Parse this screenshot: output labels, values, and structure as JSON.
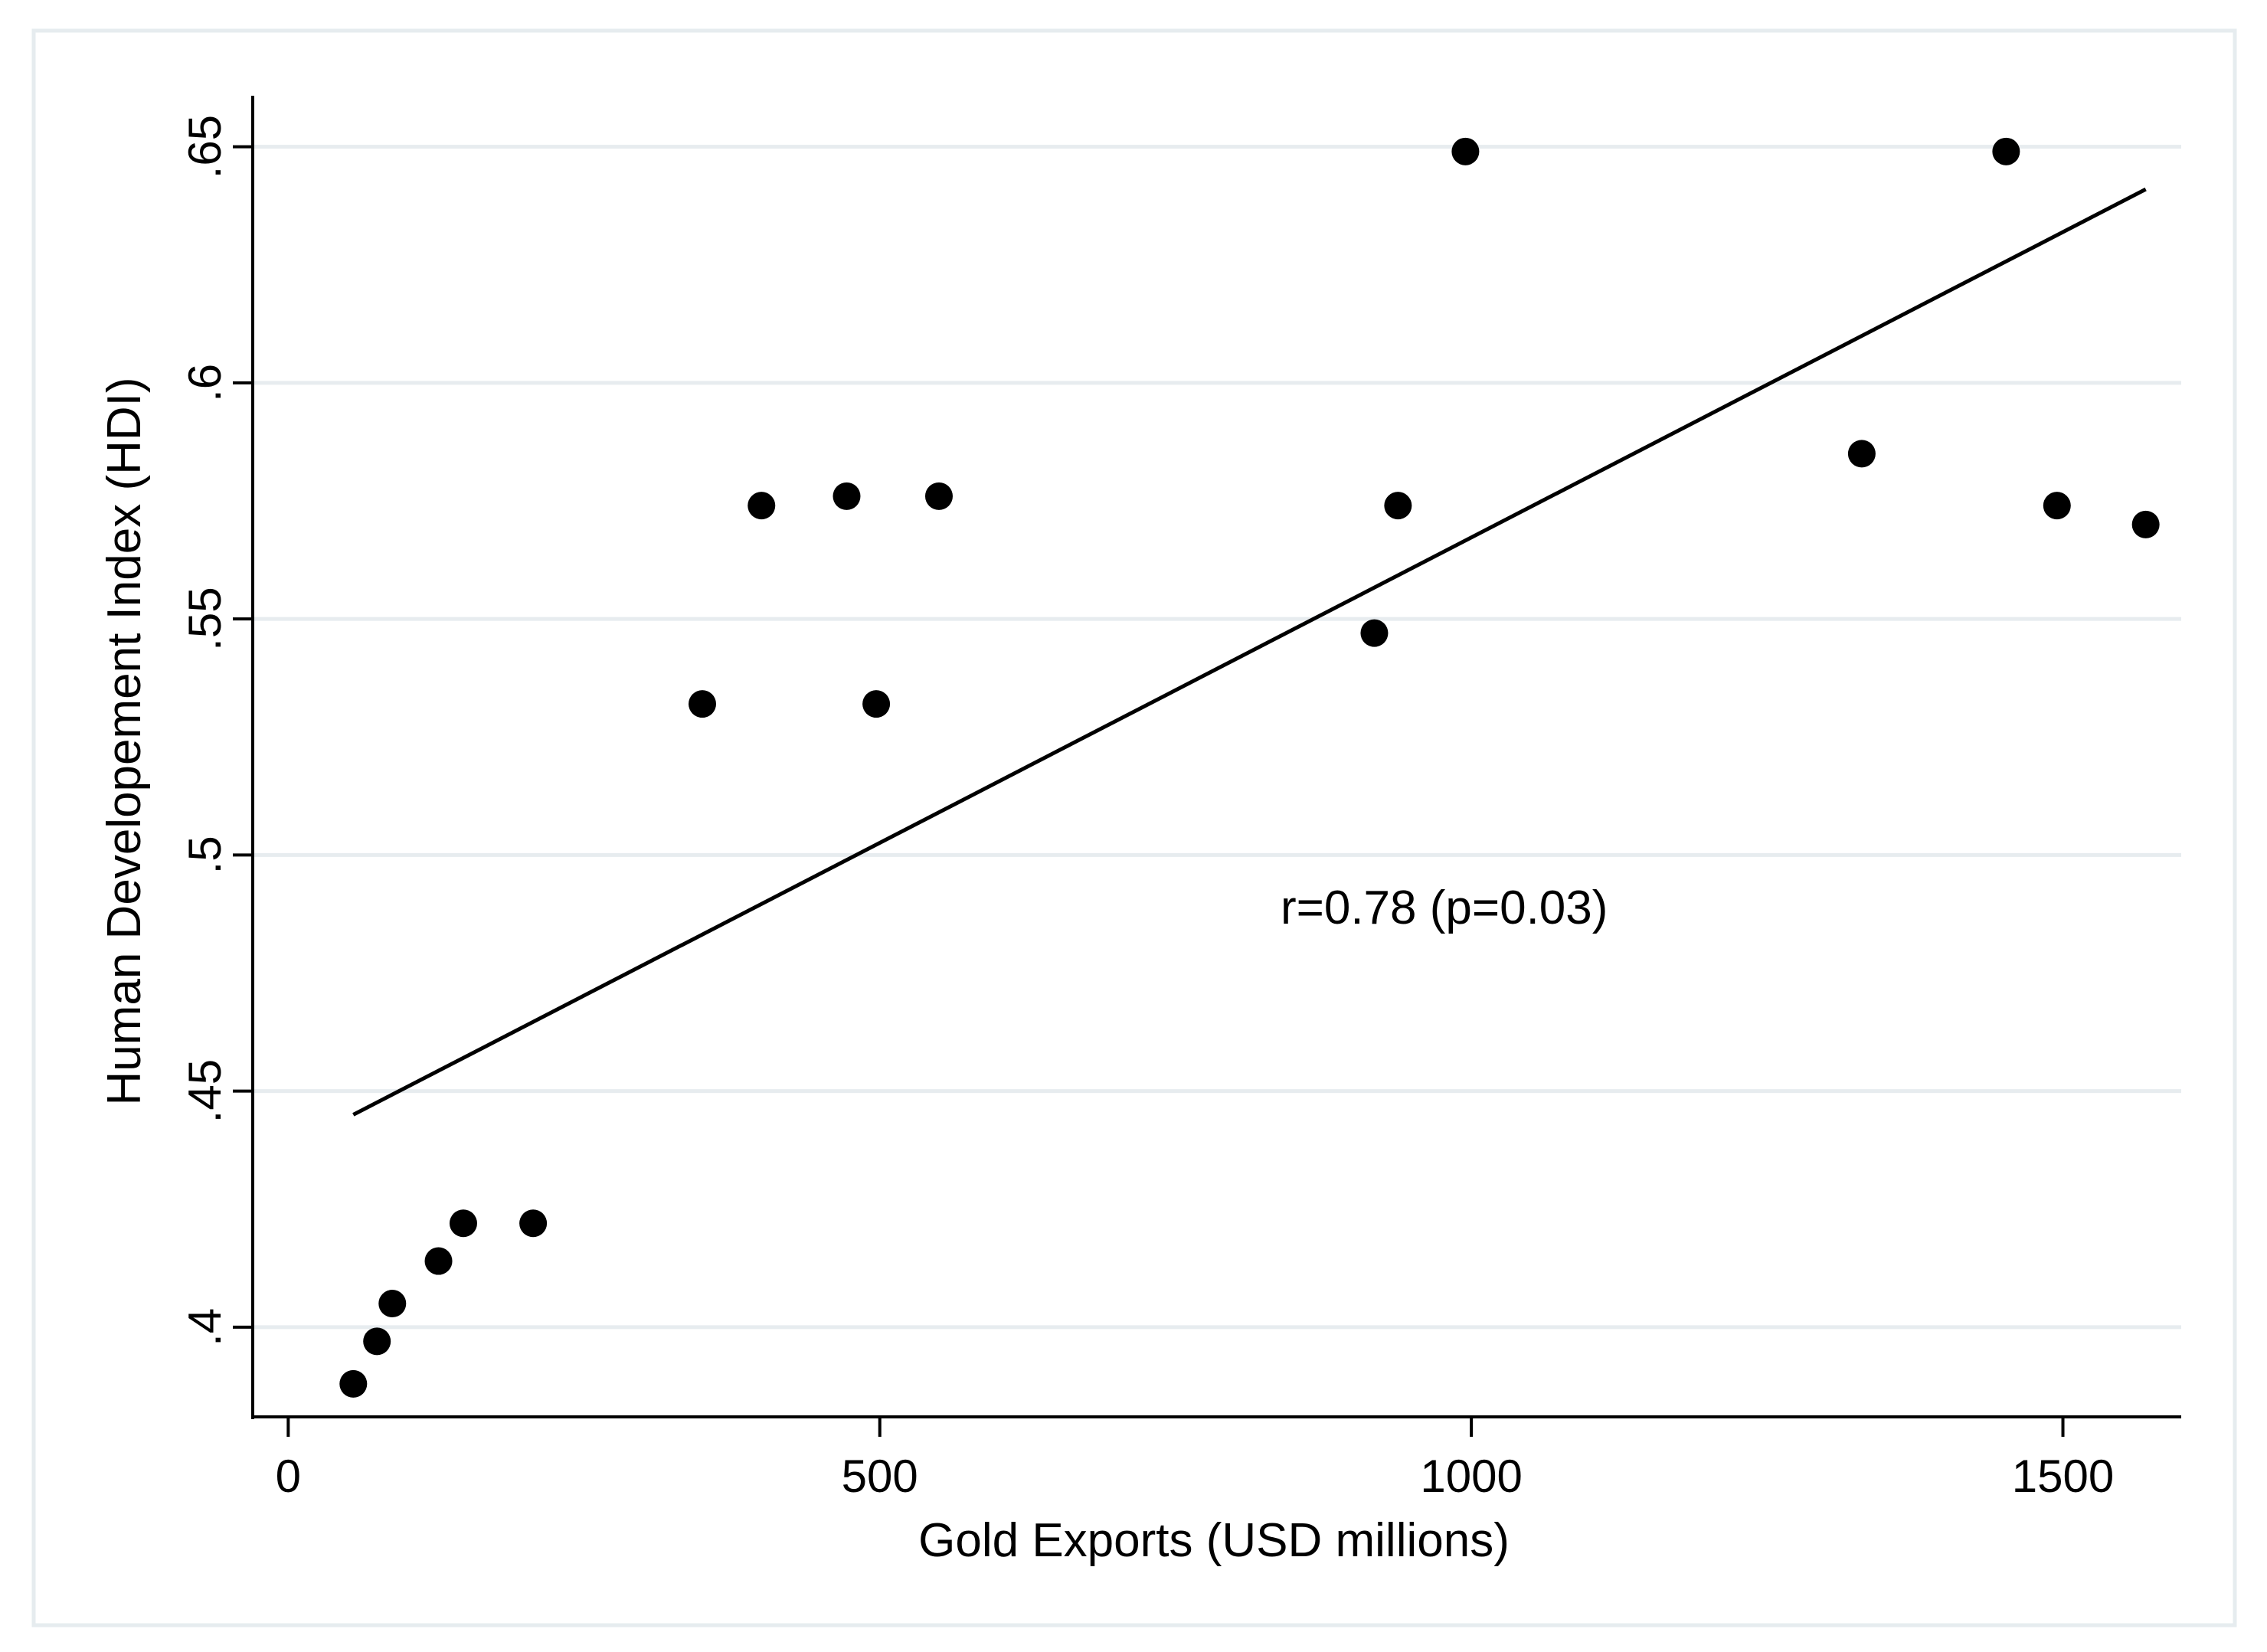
{
  "chart_data": {
    "type": "scatter",
    "title": "",
    "xlabel": "Gold Exports (USD millions)",
    "ylabel": "Human Developement Index (HDI)",
    "xlim": [
      -30,
      1600
    ],
    "ylim": [
      0.381,
      0.66
    ],
    "x_ticks": [
      0,
      500,
      1000,
      1500
    ],
    "x_tick_labels": [
      "0",
      "500",
      "1000",
      "1500"
    ],
    "y_ticks": [
      0.4,
      0.45,
      0.5,
      0.55,
      0.6,
      0.65
    ],
    "y_tick_labels": [
      ".4",
      ".45",
      ".5",
      ".55",
      ".6",
      ".65"
    ],
    "grid": true,
    "legend": "none",
    "series": [
      {
        "kind": "points",
        "x": [
          55,
          75,
          88,
          127,
          148,
          207,
          350,
          400,
          472,
          497,
          550,
          918,
          938,
          995,
          1330,
          1452,
          1495,
          1570
        ],
        "y": [
          0.388,
          0.397,
          0.405,
          0.414,
          0.422,
          0.422,
          0.532,
          0.574,
          0.576,
          0.532,
          0.576,
          0.547,
          0.574,
          0.649,
          0.585,
          0.649,
          0.574,
          0.57
        ]
      },
      {
        "kind": "fit-line",
        "x": [
          55,
          1570
        ],
        "y": [
          0.445,
          0.641
        ]
      }
    ],
    "annotation": "r=0.78 (p=0.03)",
    "colors": {
      "points": "#000000",
      "line": "#000000",
      "grid": "#e7ecef",
      "axis": "#000000",
      "frame": "#e6ecef"
    }
  }
}
